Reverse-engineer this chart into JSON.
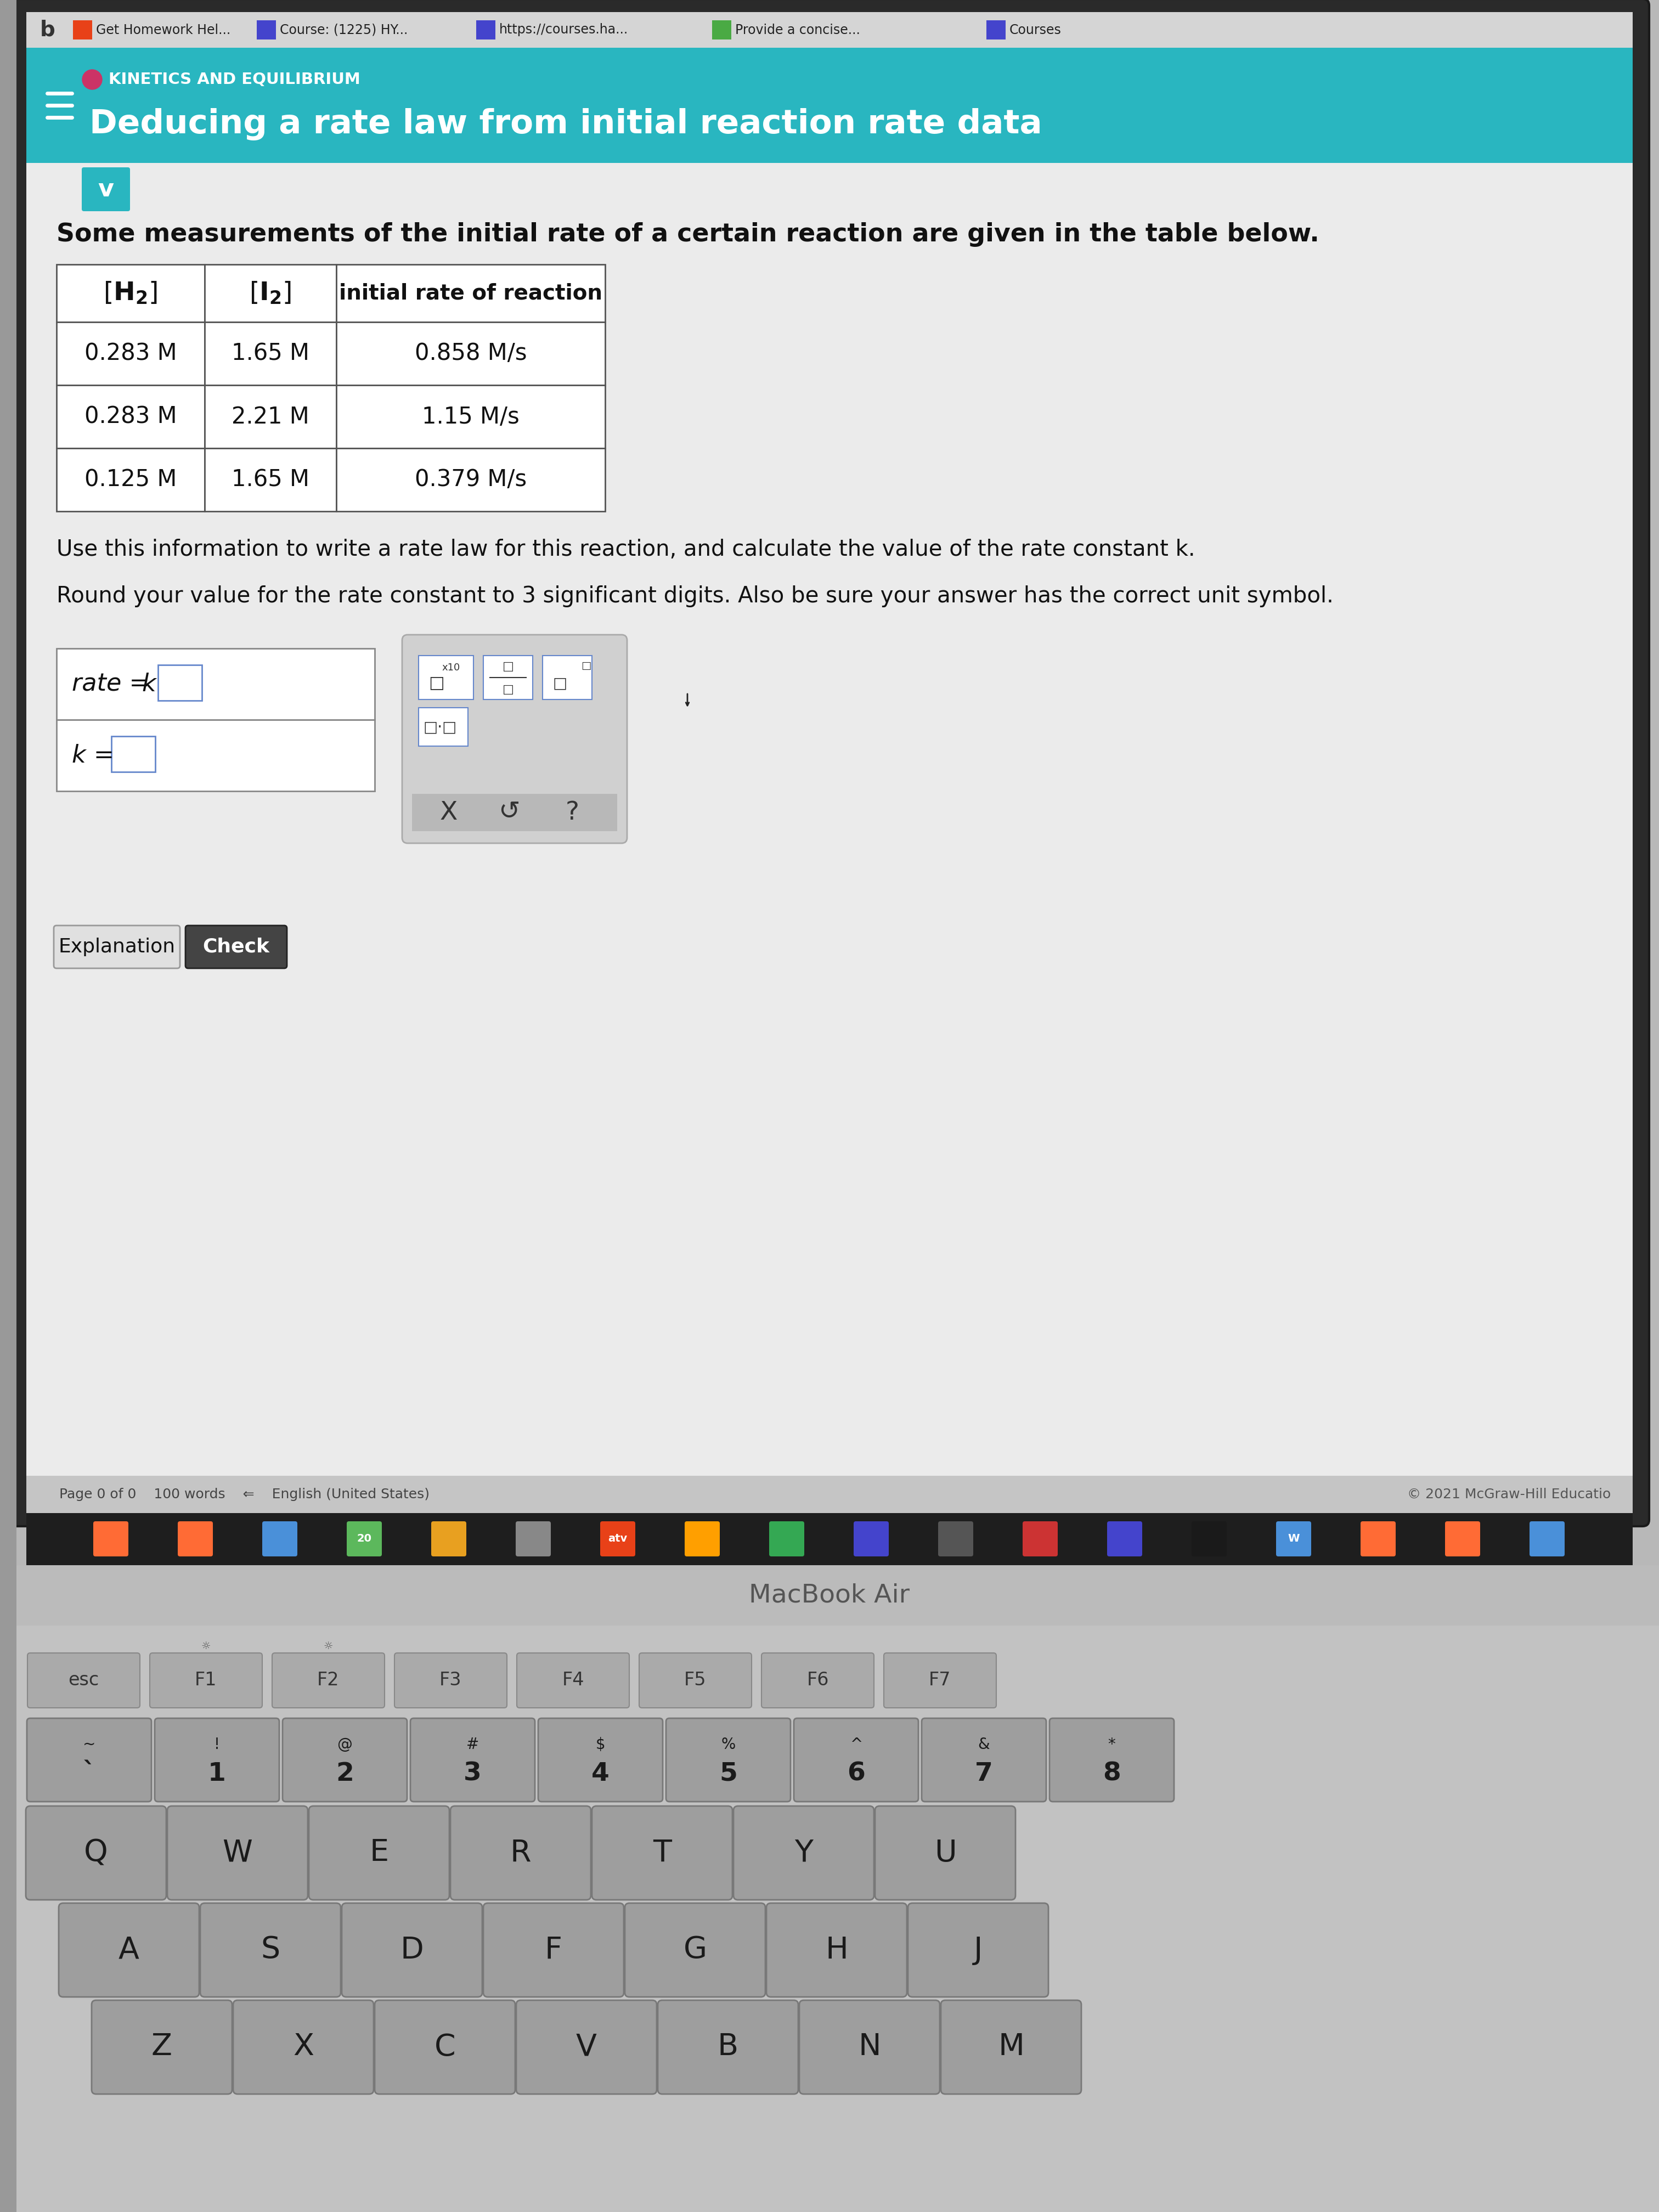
{
  "browser_tabs": [
    "Get Homework Hel...",
    "Course: (1225) HY...",
    "https://courses.ha...",
    "Provide a concise...",
    "Courses"
  ],
  "header_bg": "#29b6c0",
  "header_label": "KINETICS AND EQUILIBRIUM",
  "header_title": "Deducing a rate law from initial reaction rate data",
  "body_bg": "#e9e9e9",
  "intro_text": "Some measurements of the initial rate of a certain reaction are given in the table below.",
  "col_h1": "[H₂]",
  "col_h2": "[I₂]",
  "col_h3": "initial rate of reaction",
  "table_data": [
    [
      "0.283 M",
      "1.65 M",
      "0.858 M/s"
    ],
    [
      "0.283 M",
      "2.21 M",
      "1.15 M/s"
    ],
    [
      "0.125 M",
      "1.65 M",
      "0.379 M/s"
    ]
  ],
  "instruction1": "Use this information to write a rate law for this reaction, and calculate the value of the rate constant k.",
  "instruction2": "Round your value for the rate constant to 3 significant digits. Also be sure your answer has the correct unit symbol.",
  "copyright": "© 2021 McGraw-Hill Educatio",
  "macbook_text": "MacBook Air",
  "laptop_bg": "#b8b8b8",
  "screen_outer_bg": "#3a3a3a",
  "screen_bg": "#e9e9e9",
  "tab_bar_bg": "#d8d8d8",
  "header_stripe_bg": "#29b6c0",
  "status_bar_bg": "#c8c8c8",
  "dock_bg": "#1c1c1c",
  "kbd_bg": "#bcbcbc",
  "kbd_key_top": "#9a9a9a",
  "kbd_key_side": "#787878",
  "kbd_key_text": "#1a1a1a",
  "kbd_fn_text": "#555555",
  "bottom_bezel_bg": "#c0c0c0",
  "func_keys": [
    "esc",
    "F1",
    "F2",
    "F3",
    "F4",
    "F5",
    "F6",
    "F7"
  ],
  "num_row_top": [
    "~",
    "!",
    "@",
    "#",
    "$",
    "%",
    "^",
    "&",
    "*"
  ],
  "num_row_bot": [
    "`",
    "1",
    "2",
    "3",
    "4",
    "5",
    "6",
    "7",
    "8"
  ],
  "qrow": [
    "Q",
    "W",
    "E",
    "R",
    "T",
    "Y",
    "U"
  ],
  "arow": [
    "A",
    "S",
    "D",
    "F",
    "G",
    "H",
    "J"
  ],
  "zrow": [
    "Z",
    "X",
    "C",
    "V",
    "B",
    "N",
    "M"
  ],
  "table_border": "#555555",
  "answer_border": "#aaaacc"
}
